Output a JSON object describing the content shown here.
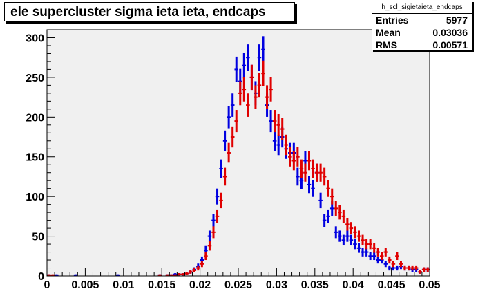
{
  "title": "ele supercluster sigma ieta ieta, endcaps",
  "stats": {
    "name": "h_scl_sigietaieta_endcaps",
    "rows": [
      {
        "label": "Entries",
        "value": "5977"
      },
      {
        "label": "Mean",
        "value": "0.03036"
      },
      {
        "label": "RMS",
        "value": "0.00571"
      }
    ]
  },
  "colors": {
    "frame_bg": "#f0f0f0",
    "blue_series": "#0000e0",
    "red_series": "#e00000"
  },
  "chart_data": {
    "type": "scatter",
    "title": "ele supercluster sigma ieta ieta, endcaps",
    "xlabel": "",
    "ylabel": "",
    "xlim": [
      0,
      0.05
    ],
    "ylim": [
      0,
      310
    ],
    "x_ticks": [
      "0",
      "0.005",
      "0.01",
      "0.015",
      "0.02",
      "0.025",
      "0.03",
      "0.035",
      "0.04",
      "0.045",
      "0.05"
    ],
    "y_ticks": [
      "0",
      "50",
      "100",
      "150",
      "200",
      "250",
      "300"
    ],
    "grid": false,
    "bin_width": 0.0005,
    "series": [
      {
        "color": "#0000e0",
        "x": [
          0.00025,
          0.00125,
          0.00375,
          0.00925,
          0.01475,
          0.01575,
          0.01625,
          0.01675,
          0.01725,
          0.01775,
          0.01825,
          0.01875,
          0.01925,
          0.01975,
          0.02025,
          0.02075,
          0.02125,
          0.02175,
          0.02225,
          0.02275,
          0.02325,
          0.02375,
          0.02425,
          0.02475,
          0.02525,
          0.02575,
          0.02625,
          0.02675,
          0.02725,
          0.02775,
          0.02825,
          0.02875,
          0.02925,
          0.02975,
          0.03025,
          0.03075,
          0.03125,
          0.03175,
          0.03225,
          0.03275,
          0.03325,
          0.03375,
          0.03425,
          0.03475,
          0.03525,
          0.03575,
          0.03625,
          0.03675,
          0.03725,
          0.03775,
          0.03825,
          0.03875,
          0.03925,
          0.03975,
          0.04025,
          0.04075,
          0.04125,
          0.04175,
          0.04225,
          0.04275,
          0.04325,
          0.04375,
          0.04425,
          0.04475,
          0.04525,
          0.04575,
          0.04625,
          0.04675,
          0.04725,
          0.04775,
          0.04825,
          0.04875,
          0.04925,
          0.04975
        ],
        "y": [
          1,
          1,
          1,
          1,
          1,
          1,
          1,
          2,
          2,
          2,
          3,
          5,
          8,
          12,
          20,
          32,
          50,
          70,
          100,
          135,
          170,
          200,
          215,
          260,
          245,
          265,
          275,
          250,
          230,
          275,
          285,
          215,
          195,
          170,
          165,
          175,
          160,
          155,
          155,
          125,
          120,
          145,
          115,
          110,
          130,
          95,
          70,
          75,
          85,
          55,
          50,
          45,
          50,
          45,
          40,
          35,
          30,
          30,
          25,
          25,
          20,
          20,
          15,
          10,
          10,
          10,
          12,
          10,
          10,
          8,
          8,
          5,
          8,
          8
        ]
      },
      {
        "color": "#e00000",
        "x": [
          0.00025,
          0.00075,
          0.01475,
          0.01575,
          0.01625,
          0.01675,
          0.01725,
          0.01775,
          0.01825,
          0.01875,
          0.01925,
          0.01975,
          0.02025,
          0.02075,
          0.02125,
          0.02175,
          0.02225,
          0.02275,
          0.02325,
          0.02375,
          0.02425,
          0.02475,
          0.02525,
          0.02575,
          0.02625,
          0.02675,
          0.02725,
          0.02775,
          0.02825,
          0.02875,
          0.02925,
          0.02975,
          0.03025,
          0.03075,
          0.03125,
          0.03175,
          0.03225,
          0.03275,
          0.03325,
          0.03375,
          0.03425,
          0.03475,
          0.03525,
          0.03575,
          0.03625,
          0.03675,
          0.03725,
          0.03775,
          0.03825,
          0.03875,
          0.03925,
          0.03975,
          0.04025,
          0.04075,
          0.04125,
          0.04175,
          0.04225,
          0.04275,
          0.04325,
          0.04375,
          0.04425,
          0.04475,
          0.04525,
          0.04575,
          0.04625,
          0.04675,
          0.04725,
          0.04775,
          0.04825,
          0.04875,
          0.04925,
          0.04975
        ],
        "y": [
          1,
          1,
          1,
          1,
          1,
          1,
          2,
          2,
          3,
          5,
          7,
          10,
          15,
          25,
          38,
          55,
          75,
          95,
          125,
          155,
          175,
          195,
          230,
          235,
          215,
          250,
          225,
          240,
          255,
          225,
          235,
          195,
          190,
          185,
          165,
          150,
          145,
          150,
          135,
          130,
          145,
          135,
          130,
          130,
          125,
          110,
          100,
          85,
          80,
          75,
          65,
          60,
          55,
          50,
          45,
          40,
          40,
          35,
          30,
          25,
          30,
          20,
          15,
          25,
          15,
          10,
          10,
          10,
          10,
          5,
          8,
          8
        ]
      }
    ]
  }
}
